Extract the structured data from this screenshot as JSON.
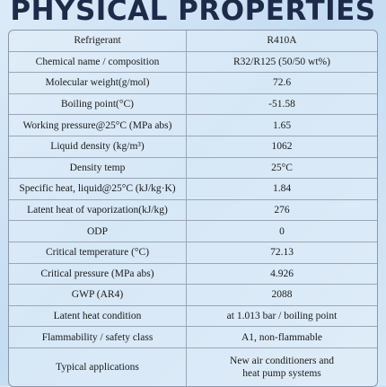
{
  "title": "PHYSICAL PROPERTIES",
  "table": {
    "rows": [
      [
        "Refrigerant",
        "R410A"
      ],
      [
        "Chemical name / composition",
        "R32/R125 (50/50 wt%)"
      ],
      [
        "Molecular weight(g/mol)",
        "72.6"
      ],
      [
        "Boiling point(°C)",
        "-51.58"
      ],
      [
        "Working pressure@25°C (MPa abs)",
        "1.65"
      ],
      [
        "Liquid density (kg/m³)",
        "1062"
      ],
      [
        "Density temp",
        "25°C"
      ],
      [
        "Specific heat, liquid@25°C (kJ/kg·K)",
        "1.84"
      ],
      [
        "Latent heat of vaporization(kJ/kg)",
        "276"
      ],
      [
        "ODP",
        "0"
      ],
      [
        "Critical temperature (°C)",
        "72.13"
      ],
      [
        "Critical pressure (MPa abs)",
        "4.926"
      ],
      [
        "GWP (AR4)",
        "2088"
      ],
      [
        "Latent heat condition",
        "at 1.013 bar / boiling point"
      ],
      [
        "Flammability / safety class",
        "A1, non-flammable"
      ],
      [
        "Typical applications",
        "New air conditioners and heat pump systems"
      ]
    ]
  }
}
